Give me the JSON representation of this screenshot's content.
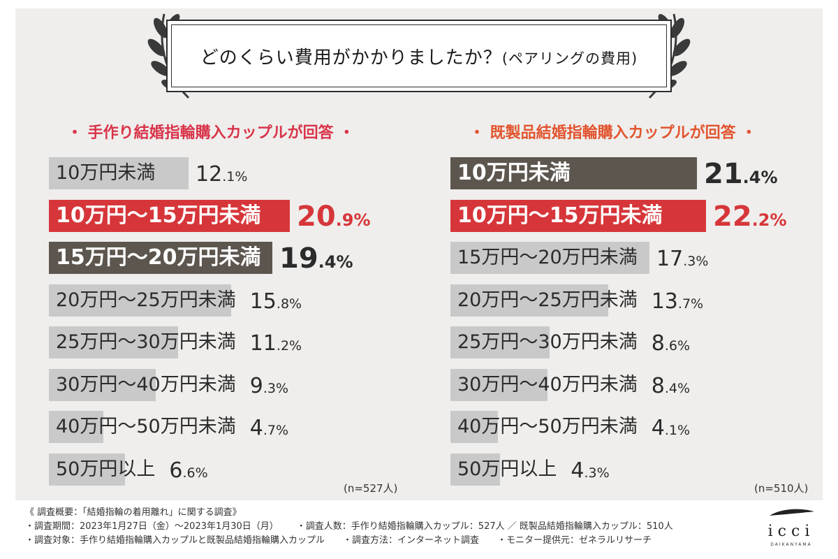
{
  "title": {
    "main": "どのくらい費用がかかりましたか？",
    "sub": "(ペアリングの費用)"
  },
  "colors": {
    "background": "#efeeec",
    "highlight_red": "#d6363a",
    "highlight_dark": "#5c564e",
    "bar_light": "#c9c9c9",
    "subhead_left": "#d9344a",
    "subhead_right": "#e2542f"
  },
  "chart_data": [
    {
      "type": "bar",
      "orientation": "horizontal",
      "title": "・ 手作り結婚指輪購入カップルが回答 ・",
      "categories": [
        "10万円未満",
        "10万円〜15万円未満",
        "15万円〜20万円未満",
        "20万円〜25万円未満",
        "25万円〜30万円未満",
        "30万円〜40万円未満",
        "40万円〜50万円未満",
        "50万円以上"
      ],
      "values": [
        12.1,
        20.9,
        19.4,
        15.8,
        11.2,
        9.3,
        4.7,
        6.6
      ],
      "highlight": [
        "light",
        "red",
        "dark",
        "light",
        "light",
        "light",
        "light",
        "light"
      ],
      "unit": "%",
      "n_label": "(n=527人)"
    },
    {
      "type": "bar",
      "orientation": "horizontal",
      "title": "・ 既製品結婚指輪購入カップルが回答 ・",
      "categories": [
        "10万円未満",
        "10万円〜15万円未満",
        "15万円〜20万円未満",
        "20万円〜25万円未満",
        "25万円〜30万円未満",
        "30万円〜40万円未満",
        "40万円〜50万円未満",
        "50万円以上"
      ],
      "values": [
        21.4,
        22.2,
        17.3,
        13.7,
        8.6,
        8.4,
        4.1,
        4.3
      ],
      "highlight": [
        "dark",
        "red",
        "light",
        "light",
        "light",
        "light",
        "light",
        "light"
      ],
      "unit": "%",
      "n_label": "(n=510人)"
    }
  ],
  "footer": {
    "line1": "《 調査概要：「結婚指輪の着用離れ」に関する調査》",
    "line2a": "・調査期間：2023年1月27日（金）〜2023年1月30日（月）",
    "line2b": "・調査人数：手作り結婚指輪購入カップル：527人 ／ 既製品結婚指輪購入カップル：510人",
    "line3a": "・調査対象：手作り結婚指輪購入カップルと既製品結婚指輪購入カップル",
    "line3b": "・調査方法：インターネット調査",
    "line3c": "・モニター提供元：ゼネラルリサーチ"
  },
  "logo": {
    "word": "icci",
    "sub": "DAIKANYAMA"
  }
}
